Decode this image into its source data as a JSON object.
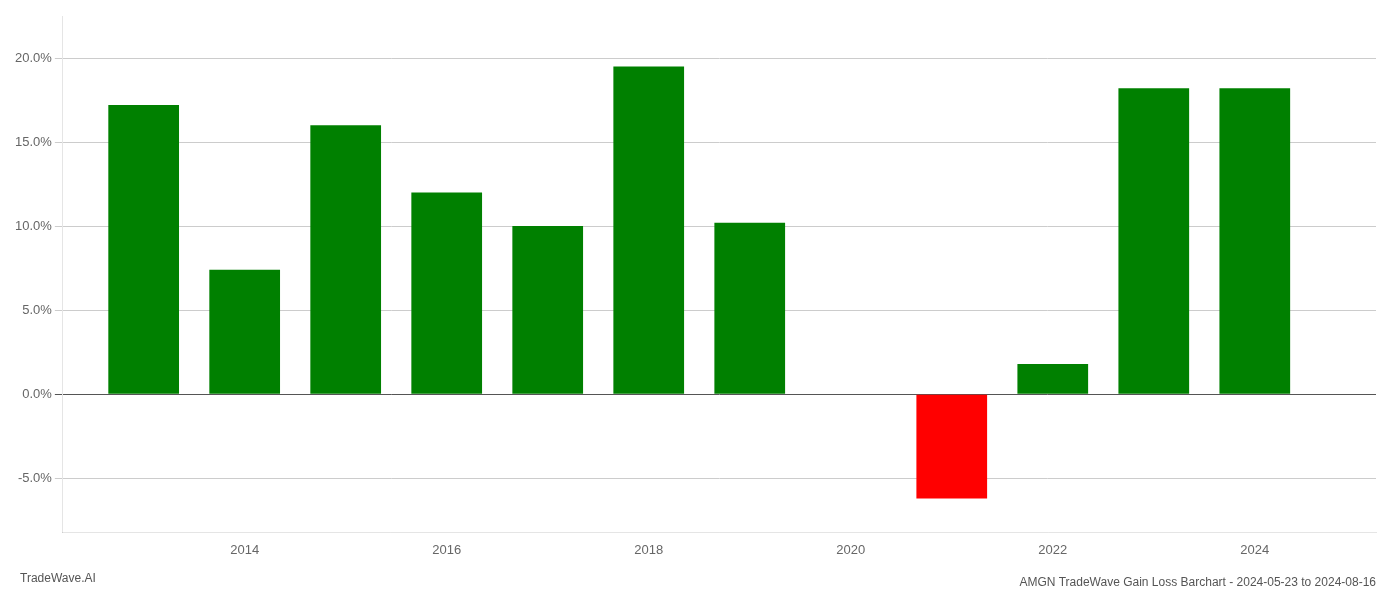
{
  "chart_data": {
    "type": "bar",
    "title": "AMGN TradeWave Gain Loss Barchart - 2024-05-23 to 2024-08-16",
    "annotations": [
      "TradeWave.AI"
    ],
    "x": [
      2013,
      2014,
      2015,
      2016,
      2017,
      2018,
      2019,
      2021,
      2022,
      2023,
      2024
    ],
    "values": [
      0.172,
      0.074,
      0.16,
      0.12,
      0.1,
      0.195,
      0.102,
      -0.062,
      0.018,
      0.182,
      0.182
    ],
    "colors": [
      "#008000",
      "#008000",
      "#008000",
      "#008000",
      "#008000",
      "#008000",
      "#008000",
      "#ff0000",
      "#008000",
      "#008000",
      "#008000"
    ],
    "xlim": [
      2012.2,
      2025.2
    ],
    "xticks": [
      2014,
      2016,
      2018,
      2020,
      2022,
      2024
    ],
    "ylim": [
      -0.082,
      0.225
    ],
    "yticks": [
      {
        "value": -0.05,
        "label": "-5.0%"
      },
      {
        "value": 0.0,
        "label": "0.0%"
      },
      {
        "value": 0.05,
        "label": "5.0%"
      },
      {
        "value": 0.1,
        "label": "10.0%"
      },
      {
        "value": 0.15,
        "label": "15.0%"
      },
      {
        "value": 0.2,
        "label": "20.0%"
      }
    ],
    "grid": true
  }
}
